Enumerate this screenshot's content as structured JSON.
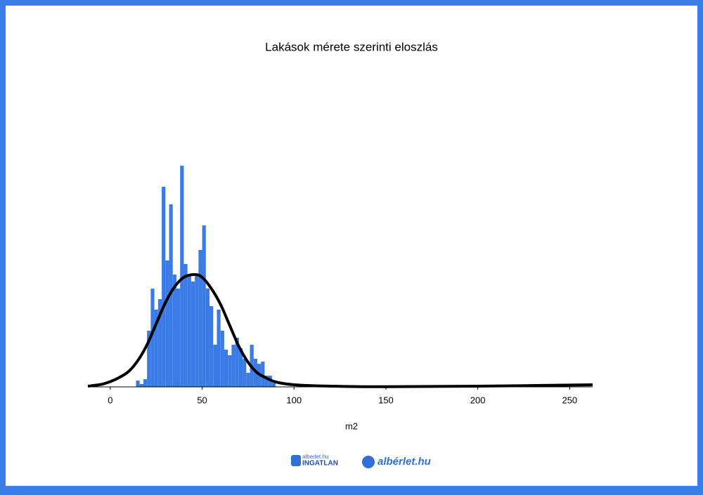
{
  "chart_data": {
    "type": "histogram",
    "title": "Lakások mérete szerinti eloszlás",
    "x_label": "m2",
    "bins": [
      14,
      16,
      18,
      20,
      22,
      24,
      26,
      28,
      30,
      32,
      34,
      36,
      38,
      40,
      42,
      44,
      46,
      48,
      50,
      52,
      54,
      56,
      58,
      60,
      62,
      64,
      66,
      68,
      70,
      72,
      74,
      76,
      78,
      80,
      82,
      84,
      86,
      88,
      90
    ],
    "values": [
      1.8,
      0.8,
      2.2,
      16,
      28,
      22,
      25,
      57,
      36,
      52,
      32,
      28,
      63,
      35,
      32,
      30,
      32,
      39,
      46,
      28,
      23,
      12,
      22,
      16,
      10.6,
      9,
      12,
      14,
      11,
      8,
      4,
      12,
      8,
      6.6,
      7.2,
      3.2,
      3.2,
      1.2
    ],
    "color": "#3b7be6",
    "curve": {
      "x": [
        -12.2,
        -5,
        0,
        5,
        10,
        15,
        20,
        25,
        30,
        35,
        40,
        46,
        50,
        55,
        60,
        65,
        70,
        75,
        80,
        85,
        90,
        100,
        120,
        150,
        200,
        262.5
      ],
      "values": [
        0.2,
        0.7,
        1.5,
        2.7,
        4.4,
        7.5,
        12,
        18,
        24,
        28.5,
        31.2,
        32,
        31.2,
        28,
        23.5,
        17.5,
        11.5,
        7,
        4,
        2.5,
        1.4,
        0.6,
        0.2,
        0.05,
        0.2,
        0.6
      ],
      "color": "#000000"
    },
    "xlim": [
      -12.2,
      262.5
    ],
    "xticks": [
      0,
      50,
      100,
      150,
      200,
      250
    ],
    "ylim": [
      0,
      90
    ]
  },
  "logos": [
    "alberlet.hu",
    "INGATLAN",
    "albérlet.hu"
  ]
}
